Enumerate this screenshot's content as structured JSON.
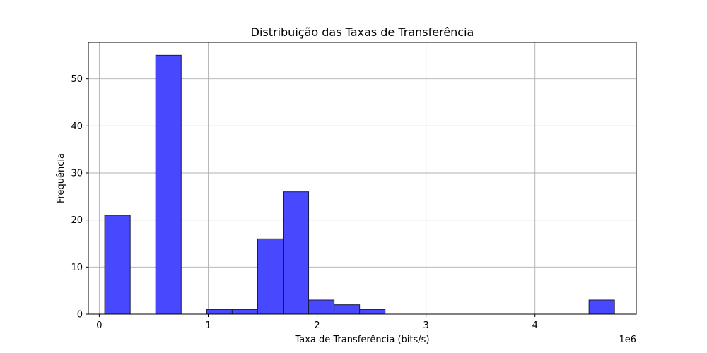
{
  "chart_data": {
    "type": "bar",
    "subtype": "histogram",
    "title": "Distribuição das Taxas de Transferência",
    "xlabel": "Taxa de Transferência (bits/s)",
    "ylabel": "Frequência",
    "x_offset_label": "1e6",
    "xlim": [
      -100000,
      4930000
    ],
    "ylim": [
      0,
      57.75
    ],
    "x_ticks": [
      0,
      1000000,
      2000000,
      3000000,
      4000000
    ],
    "x_tick_labels": [
      "0",
      "1",
      "2",
      "3",
      "4"
    ],
    "y_ticks": [
      0,
      10,
      20,
      30,
      40,
      50
    ],
    "y_tick_labels": [
      "0",
      "10",
      "20",
      "30",
      "40",
      "50"
    ],
    "grid": true,
    "bar_color": "#4848ff",
    "edge_color": "#1a1a40",
    "bins": [
      {
        "x0": 50000,
        "x1": 284000,
        "count": 21
      },
      {
        "x0": 284000,
        "x1": 518000,
        "count": 0
      },
      {
        "x0": 518000,
        "x1": 752000,
        "count": 55
      },
      {
        "x0": 752000,
        "x1": 986000,
        "count": 0
      },
      {
        "x0": 986000,
        "x1": 1220000,
        "count": 1
      },
      {
        "x0": 1220000,
        "x1": 1454000,
        "count": 1
      },
      {
        "x0": 1454000,
        "x1": 1688000,
        "count": 16
      },
      {
        "x0": 1688000,
        "x1": 1922000,
        "count": 26
      },
      {
        "x0": 1922000,
        "x1": 2156000,
        "count": 3
      },
      {
        "x0": 2156000,
        "x1": 2390000,
        "count": 2
      },
      {
        "x0": 2390000,
        "x1": 2624000,
        "count": 1
      },
      {
        "x0": 2624000,
        "x1": 2858000,
        "count": 0
      },
      {
        "x0": 2858000,
        "x1": 3092000,
        "count": 0
      },
      {
        "x0": 3092000,
        "x1": 3326000,
        "count": 0
      },
      {
        "x0": 3326000,
        "x1": 3560000,
        "count": 0
      },
      {
        "x0": 3560000,
        "x1": 3794000,
        "count": 0
      },
      {
        "x0": 3794000,
        "x1": 4028000,
        "count": 0
      },
      {
        "x0": 4028000,
        "x1": 4262000,
        "count": 0
      },
      {
        "x0": 4262000,
        "x1": 4496000,
        "count": 0
      },
      {
        "x0": 4496000,
        "x1": 4730000,
        "count": 3
      }
    ]
  }
}
